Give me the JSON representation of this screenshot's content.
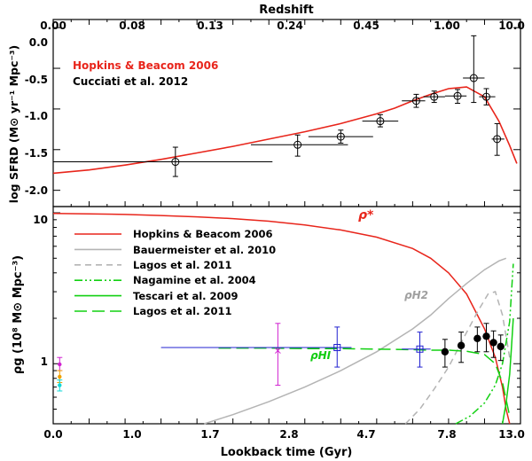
{
  "chart_data": [
    {
      "type": "scatter",
      "panel": "top",
      "top_axis": {
        "label": "Redshift",
        "ticks": [
          "0.00",
          "0.08",
          "0.13",
          "0.24",
          "0.45",
          "1.00",
          "10.0"
        ]
      },
      "ylabel": "log SFRD (M⊙ yr⁻¹ Mpc⁻³)",
      "ylim": [
        -2.2,
        0.1
      ],
      "y_ticks": [
        "0.0",
        "-0.5",
        "-1.0",
        "-1.5",
        "-2.0"
      ],
      "y_tick_values": [
        0.0,
        -0.5,
        -1.0,
        -1.5,
        -2.0
      ],
      "legend": [
        {
          "label": "Hopkins & Beacom 2006",
          "color": "#e8251b"
        },
        {
          "label": "Cucciati et al. 2012",
          "color": "#000000"
        }
      ],
      "series": [
        {
          "name": "Hopkins & Beacom 2006",
          "kind": "line",
          "color": "#e8251b",
          "x": [
            0,
            1,
            2,
            3,
            4,
            5,
            6,
            7,
            8,
            9,
            9.5,
            10,
            10.5,
            11,
            11.5,
            12,
            12.4,
            12.7,
            12.9
          ],
          "y": [
            -1.79,
            -1.75,
            -1.69,
            -1.62,
            -1.54,
            -1.46,
            -1.37,
            -1.28,
            -1.18,
            -1.06,
            -0.99,
            -0.9,
            -0.82,
            -0.75,
            -0.73,
            -0.85,
            -1.15,
            -1.45,
            -1.67
          ]
        },
        {
          "name": "Cucciati et al. 2012",
          "kind": "points",
          "color": "#000000",
          "x": [
            3.4,
            6.8,
            8.0,
            9.1,
            10.1,
            10.6,
            11.25,
            11.7,
            12.05,
            12.35
          ],
          "y": [
            -1.65,
            -1.44,
            -1.34,
            -1.15,
            -0.9,
            -0.85,
            -0.84,
            -0.62,
            -0.85,
            -1.37
          ],
          "x_low": [
            0.0,
            5.5,
            7.1,
            8.6,
            9.7,
            10.3,
            10.9,
            11.4,
            11.85,
            12.2
          ],
          "x_high": [
            6.1,
            8.2,
            8.9,
            9.6,
            10.35,
            10.9,
            11.5,
            12.0,
            12.3,
            12.55
          ],
          "y_low": [
            -1.83,
            -1.58,
            -1.42,
            -1.22,
            -0.98,
            -0.92,
            -0.93,
            -0.92,
            -0.95,
            -1.57
          ],
          "y_high": [
            -1.47,
            -1.32,
            -1.26,
            -1.07,
            -0.82,
            -0.78,
            -0.76,
            -0.1,
            -0.75,
            -1.18
          ]
        }
      ]
    },
    {
      "type": "line",
      "panel": "bottom",
      "xlabel": "Lookback time (Gyr)",
      "x_ticks": [
        "0.0",
        "1.0",
        "1.7",
        "2.8",
        "4.7",
        "7.8",
        "13.0"
      ],
      "ylabel": "ρg (10⁸ M⊙ Mpc⁻³)",
      "yscale": "log",
      "ylim": [
        0.4,
        11
      ],
      "y_ticks": [
        "1",
        "10"
      ],
      "y_tick_values": [
        1,
        10
      ],
      "annotations": [
        {
          "text": "ρ*",
          "color": "#e8251b",
          "x": 5.05,
          "y": 9.9
        },
        {
          "text": "ρH2",
          "color": "#a0a0a0",
          "x": 8.1,
          "y": 2.3
        },
        {
          "text": "ρHI",
          "color": "#10cc10",
          "x": 6.1,
          "y": 0.95
        }
      ],
      "legend": [
        {
          "label": "Hopkins & Beacom 2006",
          "color": "#e8251b",
          "style": "solid"
        },
        {
          "label": "Bauermeister et al. 2010",
          "color": "#b4b4b4",
          "style": "solid"
        },
        {
          "label": "Lagos et al. 2011",
          "color": "#b4b4b4",
          "style": "dashed"
        },
        {
          "label": "Nagamine et al. 2004",
          "color": "#10d010",
          "style": "dashdotdot"
        },
        {
          "label": "Tescari et al. 2009",
          "color": "#10d010",
          "style": "solid"
        },
        {
          "label": "Lagos et al. 2011",
          "color": "#10d010",
          "style": "longdash"
        }
      ],
      "series": [
        {
          "name": "Hopkins & Beacom 2006",
          "color": "#e8251b",
          "x": [
            0,
            1,
            2,
            3,
            4,
            5,
            6,
            7,
            8,
            9,
            10,
            10.5,
            11,
            11.5,
            12,
            12.3,
            12.5,
            12.6,
            12.7
          ],
          "y": [
            9.9,
            9.85,
            9.75,
            9.6,
            9.4,
            9.15,
            8.8,
            8.3,
            7.7,
            6.9,
            5.8,
            5.0,
            4.0,
            2.9,
            1.7,
            1.1,
            0.7,
            0.5,
            0.4
          ]
        },
        {
          "name": "Bauermeister et al. 2010",
          "color": "#b4b4b4",
          "x": [
            4.2,
            5,
            6,
            7,
            8,
            9,
            10,
            10.5,
            11,
            11.5,
            12,
            12.4,
            12.6
          ],
          "y": [
            0.4,
            0.46,
            0.56,
            0.7,
            0.9,
            1.2,
            1.7,
            2.1,
            2.7,
            3.4,
            4.2,
            4.8,
            5.0
          ]
        },
        {
          "name": "Lagos et al. 2011 (H2)",
          "color": "#b4b4b4",
          "dash": "7,5",
          "x": [
            9.8,
            10.2,
            10.6,
            11.0,
            11.4,
            11.8,
            12.1,
            12.3,
            12.5,
            12.7
          ],
          "y": [
            0.4,
            0.5,
            0.68,
            0.95,
            1.45,
            2.2,
            2.9,
            3.0,
            2.1,
            1.1
          ]
        },
        {
          "name": "Nagamine et al. 2004",
          "color": "#10d010",
          "dash": "9,3,2,3,2,3",
          "x": [
            11.2,
            11.6,
            12.0,
            12.3,
            12.5,
            12.7,
            12.8
          ],
          "y": [
            0.4,
            0.45,
            0.55,
            0.72,
            1.0,
            1.9,
            4.6
          ]
        },
        {
          "name": "Tescari et al. 2009",
          "color": "#10d010",
          "x": [
            12.5,
            12.6,
            12.7,
            12.75,
            12.8
          ],
          "y": [
            0.4,
            0.55,
            0.85,
            1.3,
            2.0
          ]
        },
        {
          "name": "Lagos et al. 2011 (HI)",
          "color": "#10d010",
          "dash": "14,6",
          "x": [
            4.6,
            6,
            7,
            8,
            9,
            10,
            10.5,
            11,
            11.5,
            12,
            12.3,
            12.5,
            12.7
          ],
          "y": [
            1.27,
            1.27,
            1.26,
            1.26,
            1.25,
            1.24,
            1.23,
            1.23,
            1.21,
            1.15,
            1.0,
            0.75,
            0.45
          ]
        }
      ],
      "points": [
        {
          "x": 0.18,
          "y": 0.99,
          "ylo": 0.9,
          "yhi": 1.1,
          "color": "#d020d0",
          "marker": "dot"
        },
        {
          "x": 0.18,
          "y": 0.82,
          "ylo": 0.75,
          "yhi": 0.9,
          "color": "#f0a000",
          "marker": "dot"
        },
        {
          "x": 0.18,
          "y": 0.72,
          "ylo": 0.66,
          "yhi": 0.78,
          "color": "#10d8d8",
          "marker": "dot"
        },
        {
          "x": 6.25,
          "y": 1.22,
          "ylo": 0.72,
          "yhi": 1.85,
          "color": "#d020d0",
          "marker": "x"
        },
        {
          "x": 7.9,
          "y": 1.28,
          "xlo": 3.0,
          "xhi": 8.3,
          "ylo": 0.95,
          "yhi": 1.75,
          "color": "#2020d0",
          "marker": "square"
        },
        {
          "x": 10.2,
          "y": 1.25,
          "xlo": 9.7,
          "xhi": 10.5,
          "ylo": 0.95,
          "yhi": 1.62,
          "color": "#2020d0",
          "marker": "square"
        },
        {
          "x": 10.9,
          "y": 1.2,
          "ylo": 0.95,
          "yhi": 1.45,
          "color": "#000000",
          "marker": "filled"
        },
        {
          "x": 11.35,
          "y": 1.32,
          "ylo": 1.02,
          "yhi": 1.62,
          "color": "#000000",
          "marker": "filled"
        },
        {
          "x": 11.8,
          "y": 1.47,
          "ylo": 1.2,
          "yhi": 1.75,
          "color": "#000000",
          "marker": "filled"
        },
        {
          "x": 12.05,
          "y": 1.52,
          "ylo": 1.2,
          "yhi": 1.85,
          "color": "#000000",
          "marker": "filled"
        },
        {
          "x": 12.25,
          "y": 1.38,
          "ylo": 1.1,
          "yhi": 1.65,
          "color": "#000000",
          "marker": "filled"
        },
        {
          "x": 12.45,
          "y": 1.3,
          "ylo": 1.05,
          "yhi": 1.55,
          "color": "#000000",
          "marker": "filled"
        }
      ]
    }
  ]
}
